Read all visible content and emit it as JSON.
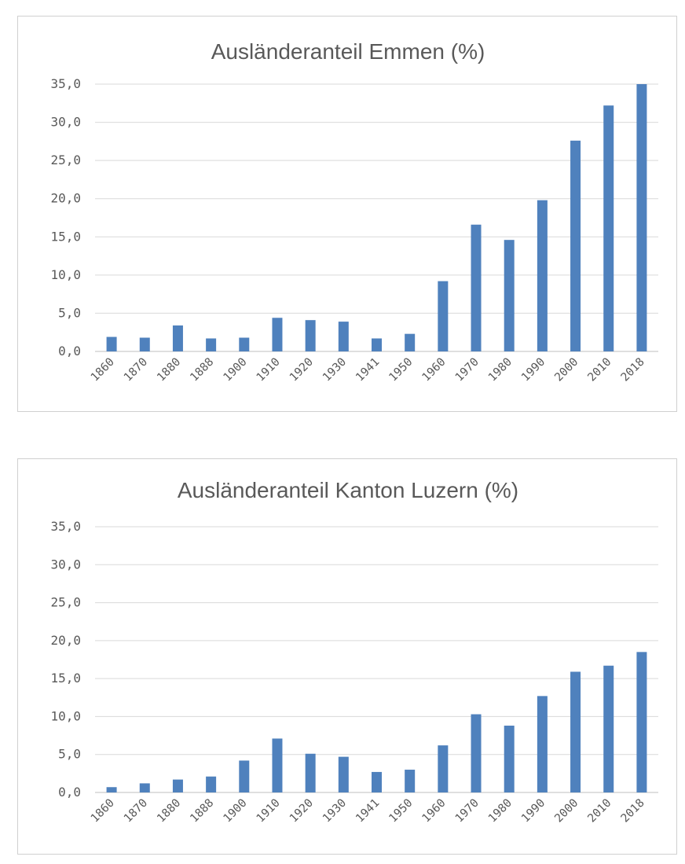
{
  "chart_data": [
    {
      "type": "bar",
      "title": "Ausländeranteil Emmen (%)",
      "categories": [
        "1860",
        "1870",
        "1880",
        "1888",
        "1900",
        "1910",
        "1920",
        "1930",
        "1941",
        "1950",
        "1960",
        "1970",
        "1980",
        "1990",
        "2000",
        "2010",
        "2018"
      ],
      "values": [
        1.9,
        1.8,
        3.4,
        1.7,
        1.8,
        4.4,
        4.1,
        3.9,
        1.7,
        2.3,
        9.2,
        16.6,
        14.6,
        19.8,
        27.6,
        32.2,
        35.0
      ],
      "ylim": [
        0,
        35
      ],
      "yticks": [
        "0,0",
        "5,0",
        "10,0",
        "15,0",
        "20,0",
        "25,0",
        "30,0",
        "35,0"
      ],
      "grid": true,
      "color": "#4f81bd"
    },
    {
      "type": "bar",
      "title": "Ausländeranteil Kanton Luzern (%)",
      "categories": [
        "1860",
        "1870",
        "1880",
        "1888",
        "1900",
        "1910",
        "1920",
        "1930",
        "1941",
        "1950",
        "1960",
        "1970",
        "1980",
        "1990",
        "2000",
        "2010",
        "2018"
      ],
      "values": [
        0.7,
        1.2,
        1.7,
        2.1,
        4.2,
        7.1,
        5.1,
        4.7,
        2.7,
        3.0,
        6.2,
        10.3,
        8.8,
        12.7,
        15.9,
        16.7,
        18.5
      ],
      "ylim": [
        0,
        35
      ],
      "yticks": [
        "0,0",
        "5,0",
        "10,0",
        "15,0",
        "20,0",
        "25,0",
        "30,0",
        "35,0"
      ],
      "grid": true,
      "color": "#4f81bd"
    }
  ]
}
